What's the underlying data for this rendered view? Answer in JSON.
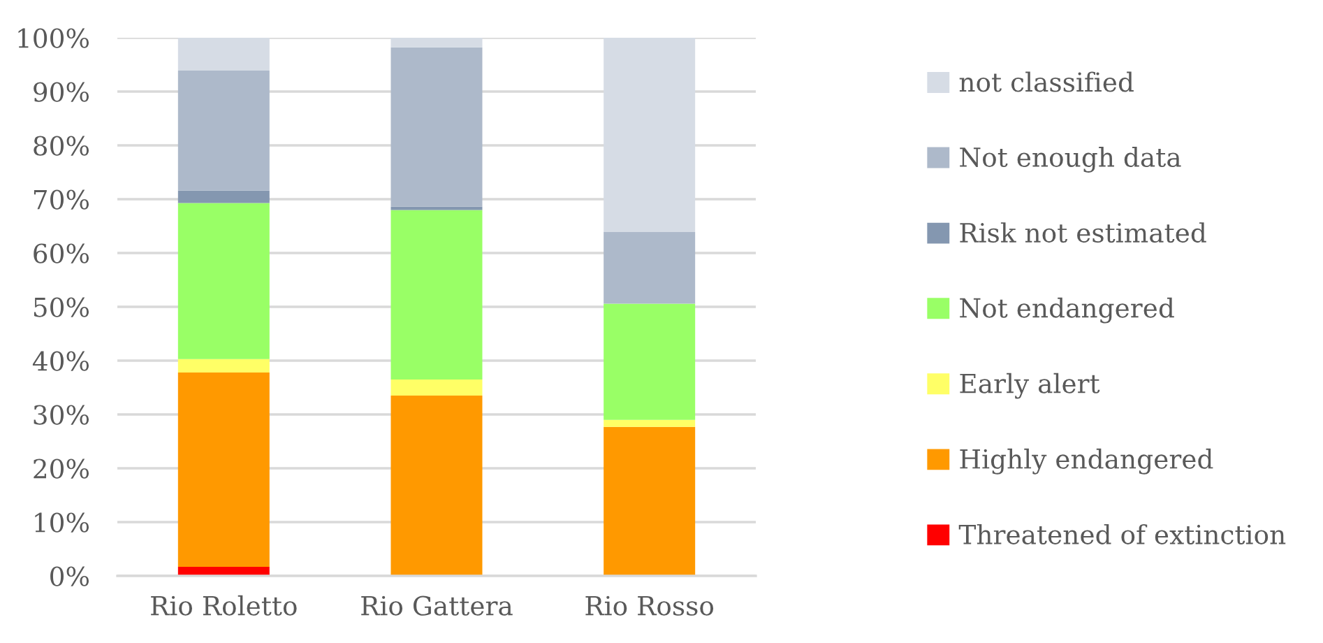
{
  "chart_data": {
    "type": "bar",
    "stacked": true,
    "categories": [
      "Rio Roletto",
      "Rio Gattera",
      "Rio Rosso"
    ],
    "series": [
      {
        "name": "Threatened of extinction",
        "color": "#ff0000",
        "values": [
          1.7,
          null,
          null
        ]
      },
      {
        "name": "Highly endangered",
        "color": "#ff9900",
        "values": [
          36.1,
          33.5,
          27.7
        ]
      },
      {
        "name": "Early alert",
        "color": "#ffff66",
        "values": [
          2.5,
          3.0,
          1.3
        ]
      },
      {
        "name": "Not endangered",
        "color": "#99ff66",
        "values": [
          29.0,
          31.5,
          21.6
        ]
      },
      {
        "name": "Risk not estimated",
        "color": "#8497b0",
        "values": [
          2.3,
          0.6,
          null
        ]
      },
      {
        "name": "Not enough data",
        "color": "#adb9ca",
        "values": [
          22.3,
          29.6,
          13.3
        ]
      },
      {
        "name": "not classified",
        "color": "#d6dce5",
        "values": [
          6.1,
          1.8,
          36.1
        ]
      }
    ],
    "ylim": [
      0,
      100
    ],
    "yticks": [
      {
        "value": 0,
        "label": "0%"
      },
      {
        "value": 10,
        "label": "10%"
      },
      {
        "value": 20,
        "label": "20%"
      },
      {
        "value": 30,
        "label": "30%"
      },
      {
        "value": 40,
        "label": "40%"
      },
      {
        "value": 50,
        "label": "50%"
      },
      {
        "value": 60,
        "label": "60%"
      },
      {
        "value": 70,
        "label": "70%"
      },
      {
        "value": 80,
        "label": "80%"
      },
      {
        "value": 90,
        "label": "90%"
      },
      {
        "value": 100,
        "label": "100%"
      }
    ],
    "grid": "y",
    "legend": "right"
  }
}
